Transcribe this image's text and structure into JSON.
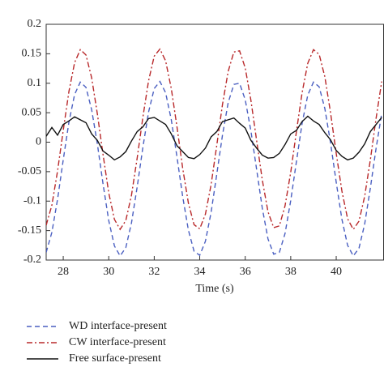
{
  "chart_data": {
    "type": "line",
    "xlabel": "Time (s)",
    "x": [
      27.25,
      27.5,
      27.75,
      28,
      28.25,
      28.5,
      28.75,
      29,
      29.25,
      29.5,
      29.75,
      30,
      30.25,
      30.5,
      30.75,
      31,
      31.25,
      31.5,
      31.75,
      32,
      32.25,
      32.5,
      32.75,
      33,
      33.25,
      33.5,
      33.75,
      34,
      34.25,
      34.5,
      34.75,
      35,
      35.25,
      35.5,
      35.75,
      36,
      36.25,
      36.5,
      36.75,
      37,
      37.25,
      37.5,
      37.75,
      38,
      38.25,
      38.5,
      38.75,
      39,
      39.25,
      39.5,
      39.75,
      40,
      40.25,
      40.5,
      40.75,
      41,
      41.25,
      41.5,
      41.75,
      42
    ],
    "series": [
      {
        "name": "WD interface-present",
        "color": "#4a5fc1",
        "dash": "6,4",
        "values": [
          -0.187,
          -0.153,
          -0.097,
          -0.03,
          0.034,
          0.081,
          0.102,
          0.093,
          0.055,
          -0.003,
          -0.071,
          -0.133,
          -0.176,
          -0.193,
          -0.179,
          -0.137,
          -0.076,
          -0.009,
          0.051,
          0.091,
          0.103,
          0.084,
          0.038,
          -0.025,
          -0.092,
          -0.149,
          -0.185,
          -0.192,
          -0.168,
          -0.119,
          -0.054,
          0.012,
          0.067,
          0.098,
          0.1,
          0.072,
          0.019,
          -0.046,
          -0.112,
          -0.164,
          -0.19,
          -0.187,
          -0.155,
          -0.099,
          -0.033,
          0.032,
          0.08,
          0.102,
          0.094,
          0.057,
          -0.001,
          -0.068,
          -0.131,
          -0.175,
          -0.193,
          -0.18,
          -0.139,
          -0.078,
          -0.011,
          0.049
        ]
      },
      {
        "name": "CW interface-present",
        "color": "#b8282a",
        "dash": "7,3,2,3",
        "values": [
          -0.141,
          -0.107,
          -0.049,
          0.02,
          0.086,
          0.135,
          0.157,
          0.148,
          0.109,
          0.048,
          -0.021,
          -0.086,
          -0.131,
          -0.148,
          -0.133,
          -0.09,
          -0.027,
          0.042,
          0.104,
          0.146,
          0.158,
          0.138,
          0.091,
          0.026,
          -0.044,
          -0.103,
          -0.14,
          -0.147,
          -0.122,
          -0.072,
          -0.005,
          0.064,
          0.12,
          0.153,
          0.155,
          0.126,
          0.071,
          0.003,
          -0.064,
          -0.118,
          -0.145,
          -0.142,
          -0.108,
          -0.051,
          0.018,
          0.084,
          0.134,
          0.157,
          0.149,
          0.111,
          0.05,
          -0.019,
          -0.083,
          -0.13,
          -0.148,
          -0.134,
          -0.092,
          -0.03,
          0.04,
          0.103
        ]
      },
      {
        "name": "Free surface-present",
        "color": "#111111",
        "dash": "none",
        "values": [
          0.01,
          0.025,
          0.012,
          0.03,
          0.036,
          0.043,
          0.038,
          0.033,
          0.014,
          0.003,
          -0.015,
          -0.022,
          -0.03,
          -0.025,
          -0.016,
          0.002,
          0.018,
          0.026,
          0.04,
          0.042,
          0.036,
          0.03,
          0.014,
          -0.006,
          -0.016,
          -0.026,
          -0.028,
          -0.021,
          -0.01,
          0.009,
          0.018,
          0.035,
          0.038,
          0.041,
          0.032,
          0.024,
          0.003,
          -0.01,
          -0.022,
          -0.027,
          -0.026,
          -0.019,
          -0.004,
          0.014,
          0.02,
          0.035,
          0.044,
          0.036,
          0.03,
          0.016,
          0.004,
          -0.014,
          -0.024,
          -0.03,
          -0.027,
          -0.017,
          -0.003,
          0.018,
          0.03,
          0.042
        ]
      }
    ],
    "xlim": [
      27.25,
      42.1
    ],
    "xticks": [
      28,
      30,
      32,
      34,
      36,
      38,
      40
    ],
    "ylim": [
      -0.2,
      0.2
    ],
    "yticks": [
      0.2,
      0.15,
      0.1,
      0.05,
      0,
      -0.05,
      -0.1,
      -0.15,
      -0.2
    ],
    "grid": false,
    "legend": "bottom-left"
  }
}
